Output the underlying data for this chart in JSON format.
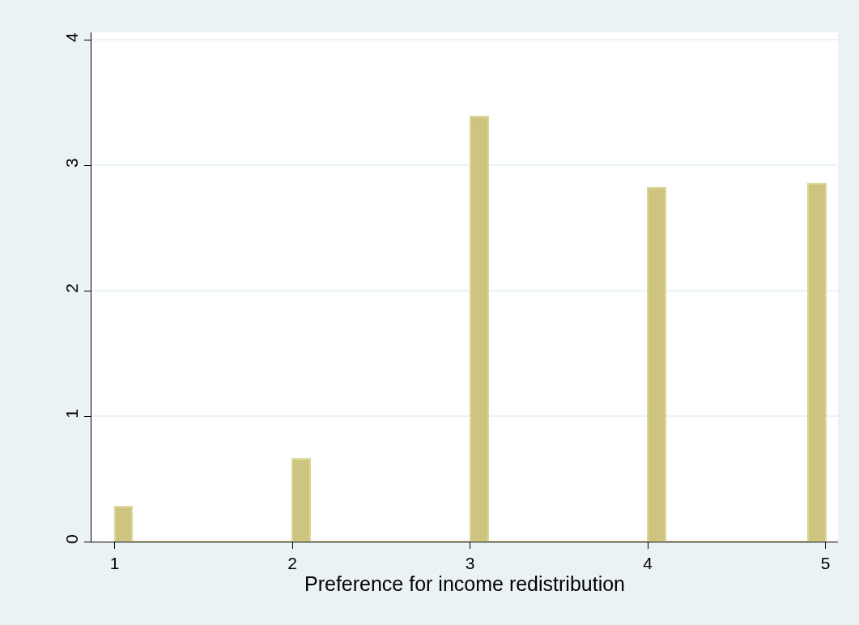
{
  "chart_data": {
    "type": "histogram",
    "xlabel": "Preference for income redistribution",
    "bins": [
      1.0,
      1.1,
      1.2,
      1.3,
      1.4,
      1.5,
      1.6,
      1.7,
      1.8,
      1.9,
      2.0,
      2.1,
      2.2,
      2.3,
      2.4,
      2.5,
      2.6,
      2.7,
      2.8,
      2.9,
      3.0,
      3.1,
      3.2,
      3.3,
      3.4,
      3.5,
      3.6,
      3.7,
      3.8,
      3.9,
      4.0,
      4.1,
      4.2,
      4.3,
      4.4,
      4.5,
      4.6,
      4.7,
      4.8,
      4.9,
      5.0
    ],
    "values": [
      0.28,
      0,
      0,
      0,
      0,
      0,
      0,
      0,
      0,
      0,
      0.66,
      0,
      0,
      0,
      0,
      0,
      0,
      0,
      0,
      0,
      3.39,
      0,
      0,
      0,
      0,
      0,
      0,
      0,
      0,
      0,
      2.82,
      0,
      0,
      0,
      0,
      0,
      0,
      0,
      0,
      2.85
    ],
    "color": "#cdc47f",
    "xlim": [
      0.87,
      5.07
    ],
    "xticks": [
      1,
      2,
      3,
      4,
      5
    ],
    "ylim": [
      0,
      4.06
    ],
    "yticks": [
      0,
      1,
      2,
      3,
      4
    ],
    "grid": "y"
  }
}
